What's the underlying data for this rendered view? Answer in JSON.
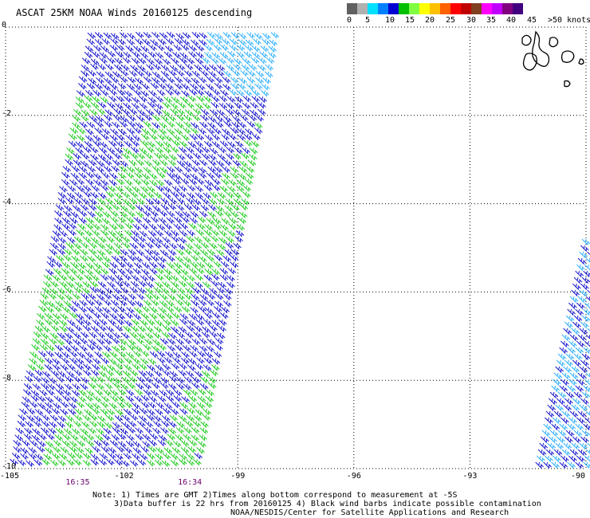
{
  "title": "ASCAT 25KM NOAA Winds 20160125 descending",
  "legend": {
    "colors": [
      "#606060",
      "#b0b0b0",
      "#00e0ff",
      "#0080ff",
      "#0000d0",
      "#00c000",
      "#80ff40",
      "#ffff00",
      "#ffc000",
      "#ff6000",
      "#ff0000",
      "#c00000",
      "#804020",
      "#ff00ff",
      "#c000ff",
      "#800080",
      "#400080"
    ],
    "labels": [
      "0",
      "5",
      "10",
      "15",
      "20",
      "25",
      "30",
      "35",
      "40",
      "45",
      ">50 knots"
    ]
  },
  "map": {
    "lon_range": [
      -105,
      -90
    ],
    "lat_range": [
      -10,
      0
    ],
    "lat_ticks": [
      {
        "value": 0,
        "label": "0"
      },
      {
        "value": -2,
        "label": "-2"
      },
      {
        "value": -4,
        "label": "-4"
      },
      {
        "value": -6,
        "label": "-6"
      },
      {
        "value": -8,
        "label": "-8"
      },
      {
        "value": -10,
        "label": "-10"
      }
    ],
    "lon_ticks": [
      {
        "value": -105,
        "label": "-105"
      },
      {
        "value": -102,
        "label": "-102"
      },
      {
        "value": -99,
        "label": "-99"
      },
      {
        "value": -96,
        "label": "-96"
      },
      {
        "value": -93,
        "label": "-93"
      },
      {
        "value": -90,
        "label": "-90"
      }
    ],
    "grid": "dotted",
    "times": [
      {
        "label": "16:35",
        "lon": -103.2
      },
      {
        "label": "16:34",
        "lon": -100.3
      }
    ],
    "barb_colors": {
      "light_blue": "#30b0ff",
      "blue": "#1a1ad0",
      "green": "#22cc22"
    }
  },
  "notes": {
    "line1": "Note: 1) Times are GMT 2)Times along bottom correspond to measurement at -5S",
    "line2": "3)Data buffer is 22 hrs from 20160125 4) Black wind barbs indicate possible contamination",
    "line3": "NOAA/NESDIS/Center for Satellite Applications and Research"
  }
}
